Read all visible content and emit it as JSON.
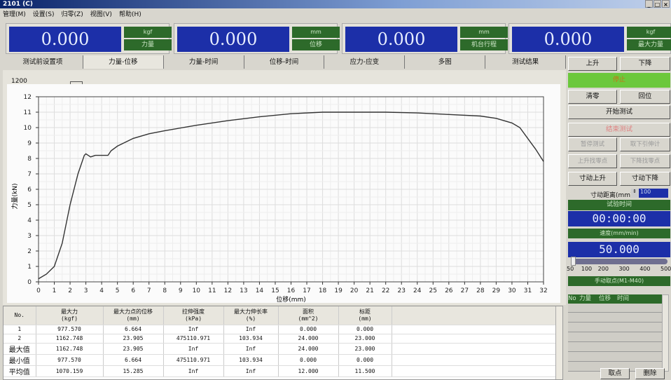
{
  "window": {
    "title": "2101 (C)",
    "controls": [
      "_",
      "□",
      "×"
    ]
  },
  "menu": [
    "管理(M)",
    "设置(S)",
    "归零(Z)",
    "视图(V)",
    "帮助(H)"
  ],
  "displays": [
    {
      "value": "0.000",
      "unit": "kgf",
      "label": "力量"
    },
    {
      "value": "0.000",
      "unit": "mm",
      "label": "位移"
    },
    {
      "value": "0.000",
      "unit": "mm",
      "label": "机台行程"
    },
    {
      "value": "0.000",
      "unit": "kgf",
      "label": "最大力量"
    }
  ],
  "tabs": [
    "测试前设置项",
    "力量-位移",
    "力量-时间",
    "位移-时间",
    "应力-应变",
    "多图",
    "测试结果"
  ],
  "active_tab": "力量-位移",
  "chart_header": {
    "scale_value": "1200"
  },
  "chart_data": {
    "type": "line",
    "xlabel": "位移(mm)",
    "ylabel": "力量(kN)",
    "xlim": [
      0,
      32
    ],
    "ylim": [
      0,
      12
    ],
    "grid": true,
    "x_ticks": [
      0,
      1,
      2,
      3,
      4,
      5,
      6,
      7,
      8,
      9,
      10,
      11,
      12,
      13,
      14,
      15,
      16,
      17,
      18,
      19,
      20,
      21,
      22,
      23,
      24,
      25,
      26,
      27,
      28,
      29,
      30,
      31,
      32
    ],
    "y_ticks": [
      0,
      1,
      2,
      3,
      4,
      5,
      6,
      7,
      8,
      9,
      10,
      11,
      12
    ],
    "series": [
      {
        "color": "#333333",
        "points": [
          [
            0,
            0.2
          ],
          [
            0.5,
            0.5
          ],
          [
            1,
            1.0
          ],
          [
            1.5,
            2.5
          ],
          [
            2,
            5.0
          ],
          [
            2.5,
            7.0
          ],
          [
            2.9,
            8.2
          ],
          [
            3.0,
            8.3
          ],
          [
            3.3,
            8.1
          ],
          [
            3.6,
            8.2
          ],
          [
            4.0,
            8.2
          ],
          [
            4.4,
            8.2
          ],
          [
            4.6,
            8.5
          ],
          [
            5,
            8.8
          ],
          [
            6,
            9.3
          ],
          [
            7,
            9.6
          ],
          [
            8,
            9.8
          ],
          [
            10,
            10.15
          ],
          [
            12,
            10.45
          ],
          [
            14,
            10.7
          ],
          [
            16,
            10.9
          ],
          [
            18,
            11.0
          ],
          [
            20,
            11.0
          ],
          [
            22,
            11.0
          ],
          [
            24,
            10.95
          ],
          [
            26,
            10.85
          ],
          [
            28,
            10.75
          ],
          [
            29,
            10.6
          ],
          [
            30,
            10.3
          ],
          [
            30.5,
            10.0
          ],
          [
            31,
            9.3
          ],
          [
            31.5,
            8.6
          ],
          [
            32,
            7.8
          ]
        ]
      }
    ]
  },
  "results_table": {
    "headers": [
      [
        "No.",
        ""
      ],
      [
        "最大力",
        "(kgf)"
      ],
      [
        "最大力点的位移",
        "(mm)"
      ],
      [
        "拉伸强度",
        "(kPa)"
      ],
      [
        "最大力伸长率",
        "(%)"
      ],
      [
        "面积",
        "(mm^2)"
      ],
      [
        "标距",
        "(mm)"
      ]
    ],
    "rows": [
      [
        "1",
        "977.570",
        "6.664",
        "Inf",
        "Inf",
        "0.000",
        "0.000"
      ],
      [
        "2",
        "1162.748",
        "23.905",
        "475110.971",
        "103.934",
        "24.000",
        "23.000"
      ],
      [
        "最大值",
        "1162.748",
        "23.905",
        "Inf",
        "Inf",
        "24.000",
        "23.000"
      ],
      [
        "最小值",
        "977.570",
        "6.664",
        "475110.971",
        "103.934",
        "0.000",
        "0.000"
      ],
      [
        "平均值",
        "1070.159",
        "15.285",
        "Inf",
        "Inf",
        "12.000",
        "11.500"
      ]
    ]
  },
  "controls": {
    "up": "上升",
    "down": "下降",
    "status": "停止",
    "zero": "清零",
    "home": "回位",
    "start": "开始测试",
    "stop": "结束测试",
    "pause": "暂停测试",
    "remove_ext": "取下引伸计",
    "up_find_zero": "上升找零点",
    "down_find_zero": "下降找零点",
    "jog_up": "寸动上升",
    "jog_down": "寸动下降",
    "jog_dist_label": "寸动距离(mm)",
    "jog_dist_value": "100",
    "time_label": "试验时间",
    "time_value": "00:00:00",
    "speed_label": "速度(mm/min)",
    "speed_value": "50.000",
    "speed_slider": {
      "min": 50,
      "max": 500,
      "value": 50,
      "tick_labels": [
        "50",
        "100",
        "200",
        "300",
        "400",
        "500"
      ]
    },
    "manual_label": "手动取点(M1-M40)",
    "manual_headers": [
      "No",
      "力量",
      "位移",
      "时间"
    ],
    "take_point": "取点",
    "delete": "删除"
  },
  "colors": {
    "display_bg": "#1c2fa8",
    "label_bg": "#2d6a2a",
    "status_green": "#6cc83c"
  }
}
